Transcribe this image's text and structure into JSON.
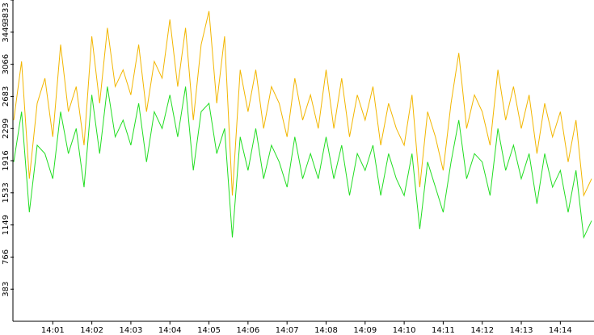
{
  "chart_data": {
    "type": "line",
    "categories": [
      null,
      null,
      null,
      null,
      null,
      "14:01",
      null,
      null,
      null,
      null,
      "14:02",
      null,
      null,
      null,
      null,
      "14:03",
      null,
      null,
      null,
      null,
      "14:04",
      null,
      null,
      null,
      null,
      "14:05",
      null,
      null,
      null,
      null,
      "14:06",
      null,
      null,
      null,
      null,
      "14:07",
      null,
      null,
      null,
      null,
      "14:08",
      null,
      null,
      null,
      null,
      "14:09",
      null,
      null,
      null,
      null,
      "14:10",
      null,
      null,
      null,
      null,
      "14:11",
      null,
      null,
      null,
      null,
      "14:12",
      null,
      null,
      null,
      null,
      "14:13",
      null,
      null,
      null,
      null,
      "14:14",
      null,
      null,
      null,
      null
    ],
    "series": [
      {
        "color": "#f2b600",
        "values": [
          2400,
          3100,
          1700,
          2600,
          2900,
          2200,
          3300,
          2500,
          2800,
          2100,
          3400,
          2600,
          3500,
          2800,
          3000,
          2700,
          3300,
          2500,
          3100,
          2900,
          3600,
          2800,
          3500,
          2400,
          3300,
          3700,
          2600,
          3400,
          1500,
          3000,
          2500,
          3000,
          2300,
          2800,
          2600,
          2200,
          2900,
          2400,
          2700,
          2300,
          3000,
          2300,
          2900,
          2200,
          2700,
          2400,
          2800,
          2100,
          2600,
          2300,
          2100,
          2700,
          1600,
          2500,
          2200,
          1800,
          2600,
          3200,
          2300,
          2700,
          2500,
          2100,
          3000,
          2400,
          2800,
          2300,
          2700,
          2000,
          2600,
          2200,
          2500,
          1900,
          2400,
          1500,
          1700
        ]
      },
      {
        "color": "#22dd22",
        "values": [
          1900,
          2500,
          1300,
          2100,
          2000,
          1700,
          2500,
          2000,
          2300,
          1600,
          2700,
          2000,
          2800,
          2200,
          2400,
          2100,
          2600,
          1900,
          2500,
          2300,
          2700,
          2200,
          2800,
          1800,
          2500,
          2600,
          2000,
          2300,
          1000,
          2200,
          1800,
          2300,
          1700,
          2100,
          1900,
          1600,
          2200,
          1700,
          2000,
          1700,
          2200,
          1700,
          2100,
          1500,
          2000,
          1800,
          2100,
          1500,
          2000,
          1700,
          1500,
          2000,
          1100,
          1900,
          1600,
          1300,
          1900,
          2400,
          1700,
          2000,
          1900,
          1500,
          2300,
          1800,
          2100,
          1700,
          2000,
          1400,
          2000,
          1600,
          1800,
          1300,
          1800,
          1000,
          1200
        ]
      }
    ],
    "ylim": [
      0,
      3833
    ],
    "yticks": [
      383,
      766,
      1149,
      1533,
      1916,
      2299,
      2683,
      3066,
      3449,
      3833
    ]
  }
}
